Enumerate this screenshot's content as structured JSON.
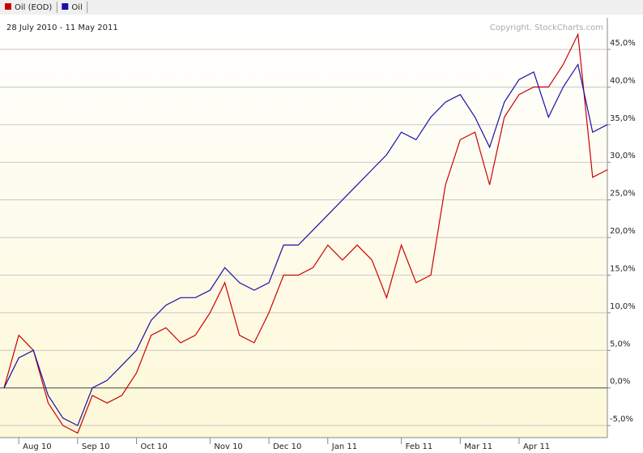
{
  "chart_data": {
    "type": "line",
    "subtitle": "28 July 2010 - 11 May 2011",
    "copyright": "Copyright. StockCharts.com",
    "categories": [
      null,
      "Aug 10",
      null,
      null,
      null,
      "Sep 10",
      null,
      null,
      null,
      "Oct 10",
      null,
      null,
      null,
      null,
      "Nov 10",
      null,
      null,
      null,
      "Dec 10",
      null,
      null,
      null,
      "Jan 11",
      null,
      null,
      null,
      null,
      "Feb 11",
      null,
      null,
      null,
      "Mar 11",
      null,
      null,
      null,
      "Apr 11",
      null,
      null,
      null,
      null,
      null,
      null
    ],
    "series": [
      {
        "name": "Oil (EOD)",
        "color": "#cc0000",
        "values": [
          0,
          7,
          5,
          -2,
          -5,
          -6,
          -1,
          -2,
          -1,
          2,
          7,
          8,
          6,
          7,
          10,
          14,
          7,
          6,
          10,
          15,
          15,
          16,
          19,
          17,
          19,
          17,
          12,
          19,
          14,
          15,
          27,
          33,
          34,
          27,
          36,
          39,
          40,
          40,
          43,
          47,
          28,
          29
        ]
      },
      {
        "name": "Oil",
        "color": "#1a0fa8",
        "values": [
          0,
          4,
          5,
          -1,
          -4,
          -5,
          0,
          1,
          3,
          5,
          9,
          11,
          12,
          12,
          13,
          16,
          14,
          13,
          14,
          19,
          19,
          21,
          23,
          25,
          27,
          29,
          31,
          34,
          33,
          36,
          38,
          39,
          36,
          32,
          38,
          41,
          42,
          36,
          40,
          43,
          34,
          35
        ]
      }
    ],
    "ylim": [
      -6.6,
      49.2
    ],
    "yticks": [
      {
        "value": -5,
        "label": "-5,0%"
      },
      {
        "value": 0,
        "label": "0,0%"
      },
      {
        "value": 5,
        "label": "5,0%"
      },
      {
        "value": 10,
        "label": "10,0%"
      },
      {
        "value": 15,
        "label": "15,0%"
      },
      {
        "value": 20,
        "label": "20,0%"
      },
      {
        "value": 25,
        "label": "25,0%"
      },
      {
        "value": 30,
        "label": "30,0%"
      },
      {
        "value": 35,
        "label": "35,0%"
      },
      {
        "value": 40,
        "label": "40,0%"
      },
      {
        "value": 45,
        "label": "45,0%"
      }
    ],
    "grid": true
  }
}
